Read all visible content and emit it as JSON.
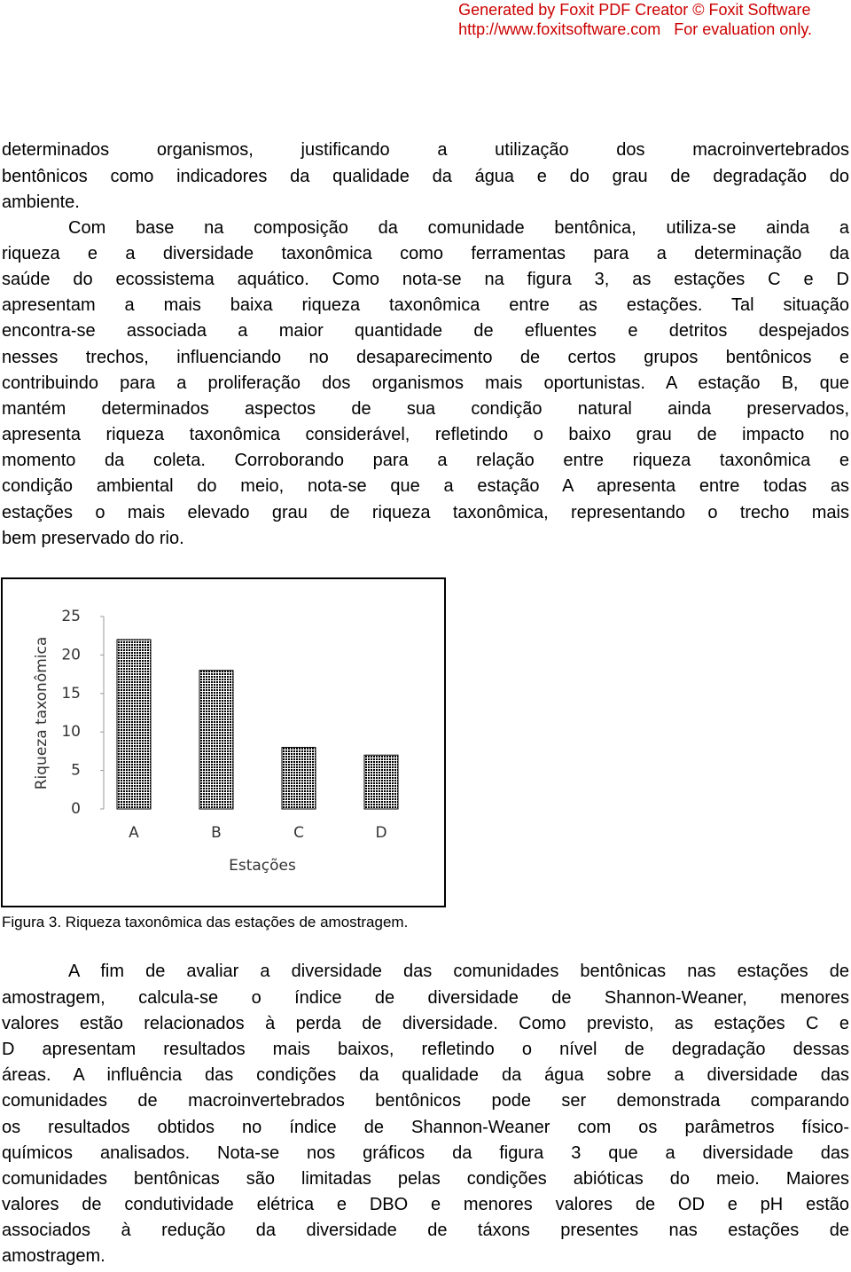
{
  "header": {
    "lines": [
      "Generated by Foxit PDF Creator © Foxit Software",
      "http://www.foxitsoftware.com   For evaluation only."
    ]
  },
  "paragraphs": [
    {
      "indent": false,
      "lines": [
        "determinados organismos, justificando a utilização dos macroinvertebrados",
        "bentônicos como indicadores da qualidade da água e do grau de degradação do",
        "ambiente."
      ]
    },
    {
      "indent": true,
      "lines": [
        "Com base na composição da comunidade bentônica, utiliza-se ainda a",
        "riqueza e a diversidade taxonômica como ferramentas para a determinação da",
        "saúde do ecossistema aquático. Como nota-se na figura 3, as estações C e D",
        "apresentam a mais baixa riqueza taxonômica entre as estações. Tal situação",
        "encontra-se associada a maior quantidade de efluentes e detritos despejados",
        "nesses trechos, influenciando no desaparecimento de certos  grupos bentônicos e",
        "contribuindo para a proliferação dos organismos mais oportunistas. A estação B, que",
        "mantém determinados aspectos de sua condição natural ainda preservados,",
        "apresenta riqueza taxonômica considerável, refletindo o baixo grau de impacto no",
        "momento da coleta. Corroborando para a relação entre riqueza taxonômica e",
        "condição  ambiental do meio, nota-se que a estação A apresenta entre todas as",
        "estações o mais elevado grau de riqueza taxonômica, representando o trecho mais",
        "bem preservado do rio."
      ]
    },
    {
      "indent": true,
      "lines": [
        "A fim de avaliar a diversidade das comunidades bentônicas nas estações de",
        "amostragem, calcula-se o índice de diversidade de Shannon-Weaner, menores",
        "valores estão relacionados à perda de diversidade. Como previsto, as estações C e",
        "D apresentam resultados mais baixos, refletindo o nível de degradação dessas",
        "áreas. A influência das condições da qualidade da água sobre a diversidade das",
        "comunidades de macroinvertebrados bentônicos pode ser demonstrada comparando",
        "os resultados obtidos no índice de Shannon-Weaner com os parâmetros físico-",
        "químicos analisados. Nota-se nos gráficos da figura 3 que a diversidade das",
        "comunidades bentônicas são limitadas pelas condições abióticas do meio. Maiores",
        "valores de condutividade elétrica e DBO e menores valores de OD e pH estão",
        "associados à redução da diversidade de táxons presentes nas estações de",
        "amostragem."
      ]
    }
  ],
  "chart_data": {
    "type": "bar",
    "categories": [
      "A",
      "B",
      "C",
      "D"
    ],
    "values": [
      22,
      18,
      8,
      7
    ],
    "color": "#000000",
    "ylim": [
      0,
      25
    ],
    "yticks": [
      0,
      5,
      10,
      15,
      20,
      25
    ],
    "x_label": "Estações",
    "y_label": "Riqueza taxonômica"
  },
  "caption": "Figura 3. Riqueza taxonômica das estações de amostragem."
}
